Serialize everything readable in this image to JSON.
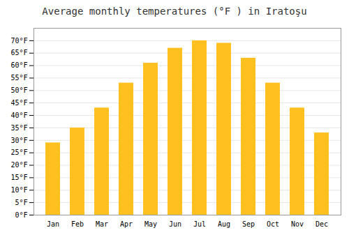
{
  "chart_data": {
    "type": "bar",
    "title": "Average monthly temperatures (°F ) in Iratoşu",
    "categories": [
      "Jan",
      "Feb",
      "Mar",
      "Apr",
      "May",
      "Jun",
      "Jul",
      "Aug",
      "Sep",
      "Oct",
      "Nov",
      "Dec"
    ],
    "values": [
      29,
      35,
      43,
      53,
      61,
      67,
      70,
      69,
      63,
      53,
      43,
      33
    ],
    "color": "#FFC020",
    "ylim": [
      0,
      75
    ],
    "yticks": [
      {
        "value": 0,
        "label": "0°F"
      },
      {
        "value": 5,
        "label": "5°F"
      },
      {
        "value": 10,
        "label": "10°F"
      },
      {
        "value": 15,
        "label": "15°F"
      },
      {
        "value": 20,
        "label": "20°F"
      },
      {
        "value": 25,
        "label": "25°F"
      },
      {
        "value": 30,
        "label": "30°F"
      },
      {
        "value": 35,
        "label": "35°F"
      },
      {
        "value": 40,
        "label": "40°F"
      },
      {
        "value": 45,
        "label": "45°F"
      },
      {
        "value": 50,
        "label": "50°F"
      },
      {
        "value": 55,
        "label": "55°F"
      },
      {
        "value": 60,
        "label": "60°F"
      },
      {
        "value": 65,
        "label": "65°F"
      },
      {
        "value": 70,
        "label": "70°F"
      }
    ],
    "grid": true
  }
}
